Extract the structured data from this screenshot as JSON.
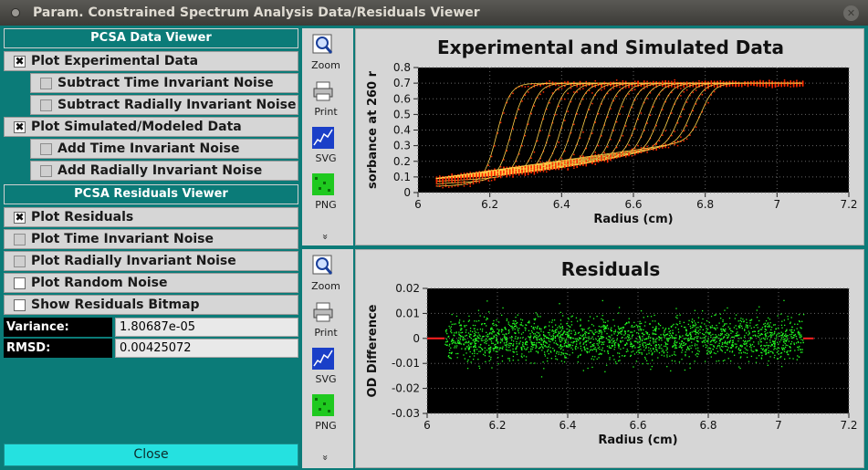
{
  "window": {
    "title": "Param. Constrained Spectrum Analysis Data/Residuals Viewer"
  },
  "data_viewer": {
    "header": "PCSA Data Viewer",
    "plot_experimental": "Plot Experimental Data",
    "subtract_ti": "Subtract Time Invariant Noise",
    "subtract_ri": "Subtract Radially Invariant Noise",
    "plot_simulated": "Plot Simulated/Modeled Data",
    "add_ti": "Add Time Invariant Noise",
    "add_ri": "Add Radially Invariant Noise"
  },
  "residuals_viewer": {
    "header": "PCSA Residuals Viewer",
    "plot_residuals": "Plot Residuals",
    "plot_ti": "Plot Time Invariant Noise",
    "plot_ri": "Plot Radially Invariant Noise",
    "plot_random": "Plot Random Noise",
    "show_bitmap": "Show Residuals Bitmap"
  },
  "stats": {
    "variance_label": "Variance:",
    "variance_value": "1.80687e-05",
    "rmsd_label": "RMSD:",
    "rmsd_value": "0.00425072"
  },
  "close_label": "Close",
  "toolbar": {
    "zoom": "Zoom",
    "print": "Print",
    "svg": "SVG",
    "png": "PNG",
    "more": "»"
  },
  "colors": {
    "panel_teal": "#0b7b78",
    "close_button": "#25e1e0",
    "exp_color": "#ff2a00",
    "sim_color": "#ffd24a",
    "resid_color": "#22ff22"
  },
  "chart_data": [
    {
      "type": "scatter",
      "title": "Experimental and Simulated Data",
      "xlabel": "Radius (cm)",
      "ylabel": "sorbance at 260 r",
      "xticks": [
        "6",
        "6.2",
        "6.4",
        "6.6",
        "6.8",
        "7",
        "7.2"
      ],
      "yticks": [
        "0",
        "0.1",
        "0.2",
        "0.3",
        "0.4",
        "0.5",
        "0.6",
        "0.7",
        "0.8"
      ],
      "xlim": [
        6.0,
        7.2
      ],
      "ylim": [
        0,
        0.8
      ],
      "x_start": 6.05,
      "x_end": 7.07,
      "plateau": 0.7,
      "scan_midpoints": [
        6.22,
        6.26,
        6.3,
        6.34,
        6.37,
        6.4,
        6.43,
        6.46,
        6.49,
        6.52,
        6.55,
        6.58,
        6.61,
        6.64,
        6.67,
        6.7,
        6.73,
        6.76,
        6.79
      ],
      "grid": true
    },
    {
      "type": "scatter",
      "title": "Residuals",
      "xlabel": "Radius (cm)",
      "ylabel": "OD Difference",
      "xticks": [
        "6",
        "6.2",
        "6.4",
        "6.6",
        "6.8",
        "7",
        "7.2"
      ],
      "yticks": [
        "0.02",
        "0.01",
        "0",
        "-0.01",
        "-0.02",
        "-0.03"
      ],
      "xlim": [
        6.0,
        7.2
      ],
      "ylim": [
        -0.03,
        0.02
      ],
      "x_start": 6.05,
      "x_end": 7.07,
      "noise_std": 0.00425,
      "grid": true
    }
  ]
}
